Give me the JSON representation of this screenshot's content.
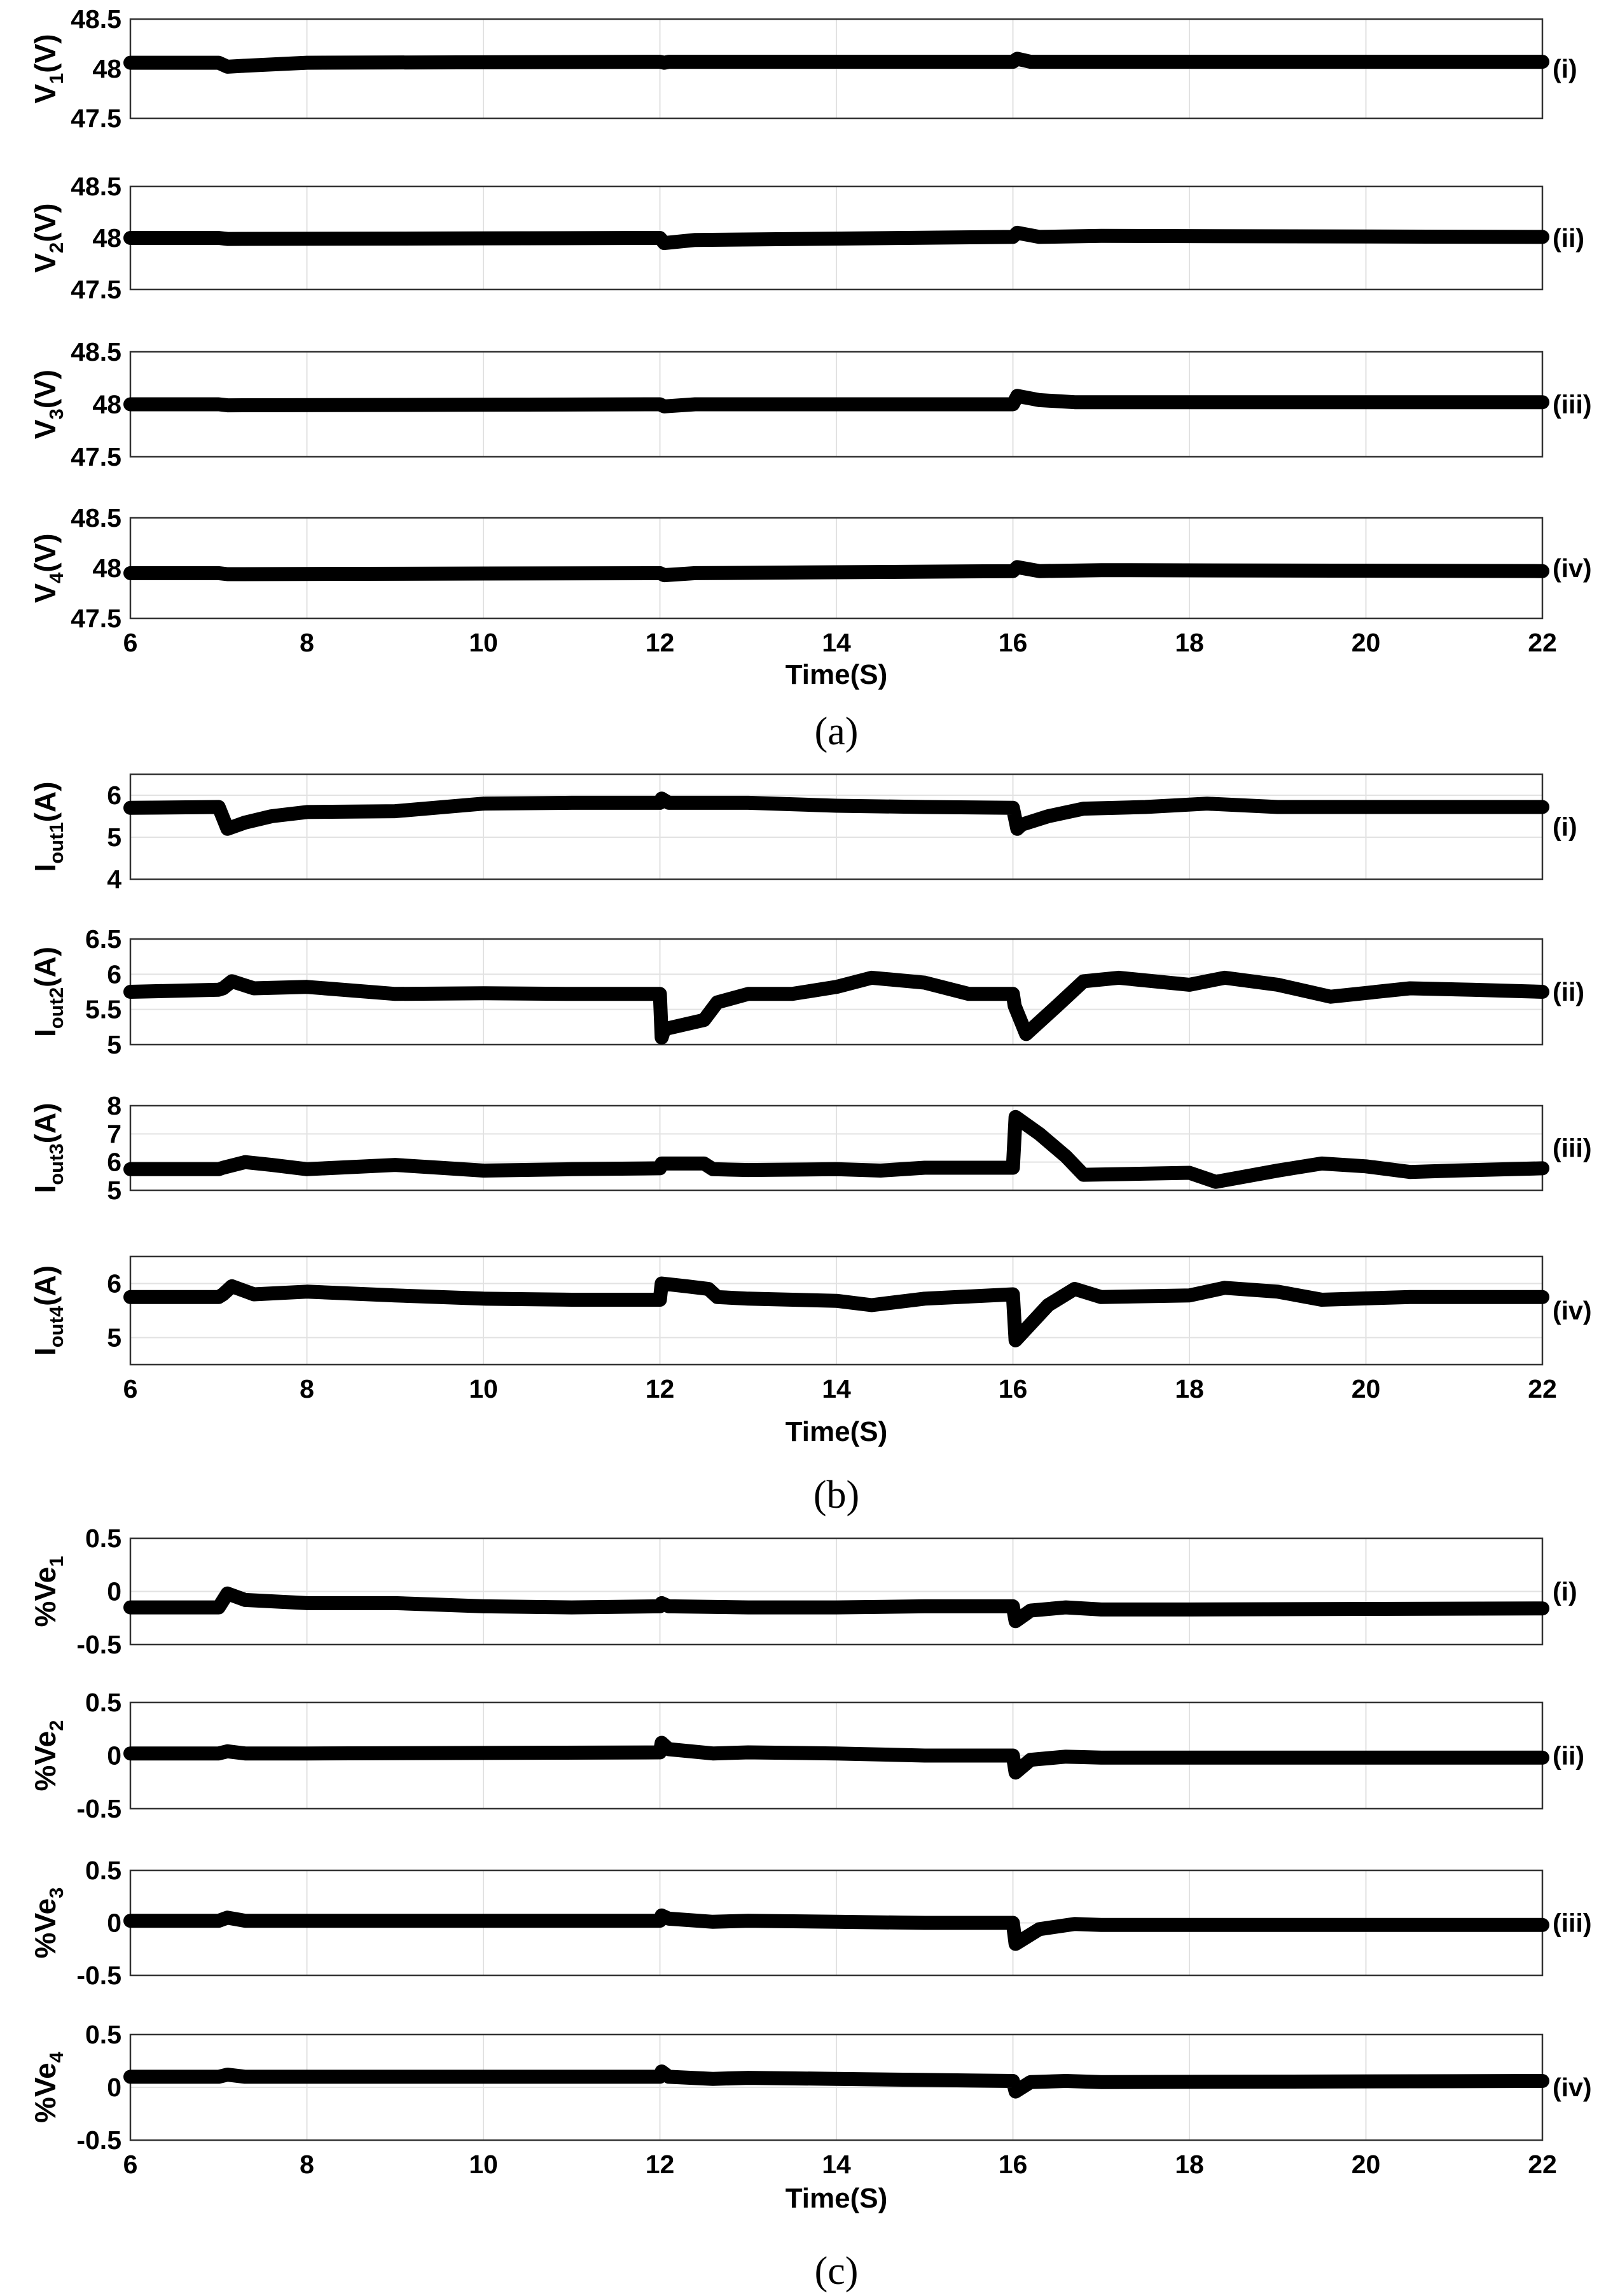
{
  "chart_data": [
    {
      "panel": "a",
      "caption": "(a)",
      "type": "line",
      "xlabel": "Time(S)",
      "xlim": [
        6,
        22
      ],
      "xticks": [
        "6",
        "8",
        "10",
        "12",
        "14",
        "16",
        "18",
        "20",
        "22"
      ],
      "grid": true,
      "subplots": [
        {
          "tag": "(i)",
          "ylabel": {
            "main": "V",
            "sub": "1",
            "unit": "(V)"
          },
          "ylim": [
            47.5,
            48.5
          ],
          "yticks": [
            "47.5",
            "48",
            "48.5"
          ],
          "series": [
            {
              "x": [
                6,
                7.0,
                7.1,
                7.3,
                8,
                12,
                12.05,
                12.1,
                16,
                16.05,
                16.2,
                22
              ],
              "y": [
                48.06,
                48.06,
                48.02,
                48.03,
                48.06,
                48.07,
                48.06,
                48.07,
                48.07,
                48.1,
                48.07,
                48.07
              ]
            }
          ]
        },
        {
          "tag": "(ii)",
          "ylabel": {
            "main": "V",
            "sub": "2",
            "unit": "(V)"
          },
          "ylim": [
            47.5,
            48.5
          ],
          "yticks": [
            "47.5",
            "48",
            "48.5"
          ],
          "series": [
            {
              "x": [
                6,
                7.0,
                7.1,
                12,
                12.05,
                12.4,
                16,
                16.05,
                16.3,
                17,
                22
              ],
              "y": [
                48.0,
                48.0,
                47.99,
                48.0,
                47.95,
                47.98,
                48.01,
                48.05,
                48.01,
                48.02,
                48.01
              ]
            }
          ]
        },
        {
          "tag": "(iii)",
          "ylabel": {
            "main": "V",
            "sub": "3",
            "unit": "(V)"
          },
          "ylim": [
            47.5,
            48.5
          ],
          "yticks": [
            "47.5",
            "48",
            "48.5"
          ],
          "series": [
            {
              "x": [
                6,
                7.0,
                7.1,
                12,
                12.05,
                12.4,
                16,
                16.05,
                16.3,
                16.7,
                22
              ],
              "y": [
                48.0,
                48.0,
                47.99,
                48.0,
                47.98,
                48.0,
                48.0,
                48.08,
                48.04,
                48.02,
                48.02
              ]
            }
          ]
        },
        {
          "tag": "(iv)",
          "ylabel": {
            "main": "V",
            "sub": "4",
            "unit": "(V)"
          },
          "ylim": [
            47.5,
            48.5
          ],
          "yticks": [
            "47.5",
            "48",
            "48.5"
          ],
          "series": [
            {
              "x": [
                6,
                7.0,
                7.1,
                12,
                12.05,
                12.4,
                16,
                16.05,
                16.3,
                17,
                22
              ],
              "y": [
                47.95,
                47.95,
                47.94,
                47.95,
                47.93,
                47.95,
                47.97,
                48.01,
                47.97,
                47.98,
                47.97
              ]
            }
          ]
        }
      ]
    },
    {
      "panel": "b",
      "caption": "(b)",
      "type": "line",
      "xlabel": "Time(S)",
      "xlim": [
        6,
        22
      ],
      "xticks": [
        "6",
        "8",
        "10",
        "12",
        "14",
        "16",
        "18",
        "20",
        "22"
      ],
      "grid": true,
      "subplots": [
        {
          "tag": "(i)",
          "ylabel": {
            "main": "I",
            "sub": "out1",
            "unit": "(A)"
          },
          "ylim": [
            4,
            6.5
          ],
          "yticks": [
            "4",
            "5",
            "6"
          ],
          "series": [
            {
              "x": [
                6,
                7.0,
                7.1,
                7.3,
                7.6,
                8,
                9,
                10,
                11,
                12,
                12.02,
                12.1,
                13,
                14,
                15,
                16,
                16.05,
                16.1,
                16.4,
                16.8,
                17.5,
                18.2,
                19,
                20,
                21,
                22
              ],
              "y": [
                5.7,
                5.72,
                5.2,
                5.35,
                5.5,
                5.6,
                5.62,
                5.8,
                5.82,
                5.82,
                5.92,
                5.82,
                5.82,
                5.75,
                5.72,
                5.7,
                5.2,
                5.3,
                5.5,
                5.68,
                5.72,
                5.8,
                5.72,
                5.72,
                5.72,
                5.72
              ]
            }
          ]
        },
        {
          "tag": "(ii)",
          "ylabel": {
            "main": "I",
            "sub": "out2",
            "unit": "(A)"
          },
          "ylim": [
            5,
            6.5
          ],
          "yticks": [
            "5",
            "5.5",
            "6",
            "6.5"
          ],
          "series": [
            {
              "x": [
                6,
                7.0,
                7.05,
                7.15,
                7.4,
                8,
                9,
                10,
                11,
                12,
                12.02,
                12.05,
                12.5,
                12.65,
                13,
                13.5,
                14,
                14.4,
                15,
                15.5,
                16,
                16.02,
                16.15,
                16.5,
                16.8,
                17.2,
                18,
                18.4,
                19,
                19.6,
                20.5,
                21.2,
                22
              ],
              "y": [
                5.75,
                5.78,
                5.8,
                5.9,
                5.8,
                5.82,
                5.72,
                5.73,
                5.72,
                5.72,
                5.1,
                5.22,
                5.35,
                5.6,
                5.72,
                5.72,
                5.82,
                5.95,
                5.88,
                5.72,
                5.72,
                5.55,
                5.15,
                5.55,
                5.9,
                5.95,
                5.85,
                5.95,
                5.85,
                5.68,
                5.8,
                5.78,
                5.75
              ]
            }
          ]
        },
        {
          "tag": "(iii)",
          "ylabel": {
            "main": "I",
            "sub": "out3",
            "unit": "(A)"
          },
          "ylim": [
            5,
            8
          ],
          "yticks": [
            "5",
            "6",
            "7",
            "8"
          ],
          "series": [
            {
              "x": [
                6,
                7.0,
                7.05,
                7.3,
                7.6,
                8,
                9,
                9.5,
                10,
                11,
                12,
                12.02,
                12.5,
                12.6,
                13,
                14,
                14.5,
                15,
                16,
                16.03,
                16.3,
                16.6,
                16.8,
                18,
                18.3,
                19,
                19.5,
                20,
                20.5,
                21,
                22
              ],
              "y": [
                5.75,
                5.75,
                5.8,
                6.0,
                5.9,
                5.75,
                5.9,
                5.8,
                5.7,
                5.75,
                5.78,
                5.95,
                5.95,
                5.75,
                5.72,
                5.75,
                5.7,
                5.8,
                5.8,
                7.6,
                7.0,
                6.2,
                5.55,
                5.62,
                5.3,
                5.7,
                5.95,
                5.85,
                5.65,
                5.7,
                5.78
              ]
            }
          ]
        },
        {
          "tag": "(iv)",
          "ylabel": {
            "main": "I",
            "sub": "out4",
            "unit": "(A)"
          },
          "ylim": [
            4.5,
            6.5
          ],
          "yticks": [
            "5",
            "6"
          ],
          "series": [
            {
              "x": [
                6,
                7.0,
                7.05,
                7.15,
                7.4,
                8,
                9,
                10,
                11,
                12,
                12.02,
                12.3,
                12.55,
                12.65,
                13,
                14,
                14.4,
                15,
                16,
                16.03,
                16.4,
                16.7,
                17,
                18,
                18.4,
                19,
                19.5,
                20.5,
                22
              ],
              "y": [
                5.75,
                5.75,
                5.8,
                5.95,
                5.8,
                5.85,
                5.78,
                5.72,
                5.7,
                5.7,
                6.0,
                5.95,
                5.9,
                5.75,
                5.72,
                5.68,
                5.6,
                5.72,
                5.8,
                4.95,
                5.6,
                5.9,
                5.75,
                5.78,
                5.92,
                5.85,
                5.7,
                5.75,
                5.75
              ]
            }
          ]
        }
      ]
    },
    {
      "panel": "c",
      "caption": "(c)",
      "type": "line",
      "xlabel": "Time(S)",
      "xlim": [
        6,
        22
      ],
      "xticks": [
        "6",
        "8",
        "10",
        "12",
        "14",
        "16",
        "18",
        "20",
        "22"
      ],
      "grid": true,
      "subplots": [
        {
          "tag": "(i)",
          "ylabel": {
            "main": "%Ve",
            "sub": "1",
            "unit": ""
          },
          "ylim": [
            -0.5,
            0.5
          ],
          "yticks": [
            "-0.5",
            "0",
            "0.5"
          ],
          "series": [
            {
              "x": [
                6,
                7.0,
                7.1,
                7.3,
                8,
                9,
                10,
                11,
                12,
                12.02,
                12.1,
                13,
                14,
                15,
                16,
                16.03,
                16.2,
                16.6,
                17,
                18,
                22
              ],
              "y": [
                -0.15,
                -0.15,
                -0.02,
                -0.08,
                -0.11,
                -0.11,
                -0.14,
                -0.15,
                -0.14,
                -0.11,
                -0.14,
                -0.15,
                -0.15,
                -0.14,
                -0.14,
                -0.28,
                -0.18,
                -0.15,
                -0.17,
                -0.17,
                -0.16
              ]
            }
          ]
        },
        {
          "tag": "(ii)",
          "ylabel": {
            "main": "%Ve",
            "sub": "2",
            "unit": ""
          },
          "ylim": [
            -0.5,
            0.5
          ],
          "yticks": [
            "-0.5",
            "0",
            "0.5"
          ],
          "series": [
            {
              "x": [
                6,
                7.0,
                7.1,
                7.3,
                8,
                12,
                12.02,
                12.1,
                12.6,
                13,
                14,
                15,
                16,
                16.03,
                16.2,
                16.6,
                17,
                22
              ],
              "y": [
                0.02,
                0.02,
                0.04,
                0.02,
                0.02,
                0.03,
                0.12,
                0.06,
                0.02,
                0.03,
                0.02,
                0.0,
                0.0,
                -0.16,
                -0.04,
                -0.01,
                -0.02,
                -0.02
              ]
            }
          ]
        },
        {
          "tag": "(iii)",
          "ylabel": {
            "main": "%Ve",
            "sub": "3",
            "unit": ""
          },
          "ylim": [
            -0.5,
            0.5
          ],
          "yticks": [
            "-0.5",
            "0",
            "0.5"
          ],
          "series": [
            {
              "x": [
                6,
                7.0,
                7.1,
                7.3,
                8,
                12,
                12.02,
                12.1,
                12.6,
                13,
                14,
                15,
                16,
                16.03,
                16.3,
                16.7,
                17,
                22
              ],
              "y": [
                0.02,
                0.02,
                0.05,
                0.02,
                0.02,
                0.02,
                0.07,
                0.04,
                0.01,
                0.02,
                0.01,
                0.0,
                0.0,
                -0.2,
                -0.06,
                -0.01,
                -0.02,
                -0.02
              ]
            }
          ]
        },
        {
          "tag": "(iv)",
          "ylabel": {
            "main": "%Ve",
            "sub": "4",
            "unit": ""
          },
          "ylim": [
            -0.5,
            0.5
          ],
          "yticks": [
            "-0.5",
            "0",
            "0.5"
          ],
          "series": [
            {
              "x": [
                6,
                7.0,
                7.1,
                7.3,
                12,
                12.02,
                12.1,
                12.6,
                13,
                14,
                15,
                16,
                16.03,
                16.2,
                16.6,
                17,
                22
              ],
              "y": [
                0.1,
                0.1,
                0.12,
                0.1,
                0.1,
                0.15,
                0.1,
                0.08,
                0.09,
                0.08,
                0.07,
                0.06,
                -0.04,
                0.05,
                0.06,
                0.05,
                0.06
              ]
            }
          ]
        }
      ]
    }
  ]
}
